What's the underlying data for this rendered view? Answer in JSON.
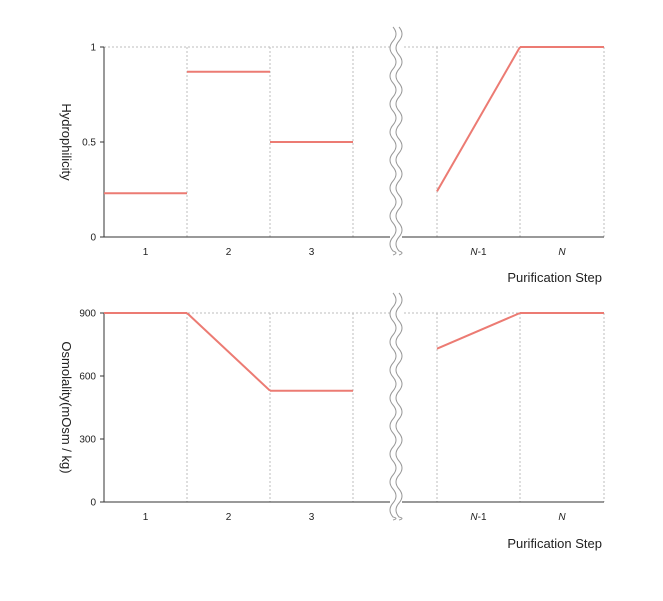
{
  "colors": {
    "series": "#ec7b73",
    "grid": "#bdbdbd",
    "axis": "#333333"
  },
  "chart_data": [
    {
      "type": "line",
      "title": "",
      "xlabel": "Purification Step",
      "ylabel": "Hydrophilicity",
      "ylim": [
        0,
        1
      ],
      "yticks": [
        "0",
        "0.5",
        "1"
      ],
      "categories": [
        {
          "prefix": "",
          "italic": "",
          "suffix": "1"
        },
        {
          "prefix": "",
          "italic": "",
          "suffix": "2"
        },
        {
          "prefix": "",
          "italic": "",
          "suffix": "3"
        },
        {
          "prefix": "",
          "italic": "N",
          "suffix": "-1"
        },
        {
          "prefix": "",
          "italic": "N",
          "suffix": ""
        }
      ],
      "axis_break": "between 3 and N-1",
      "grid": true,
      "series": [
        {
          "values_start": [
            0.23,
            0.87,
            0.5,
            0.24,
            1.0
          ],
          "values_end": [
            0.23,
            0.87,
            0.5,
            1.0,
            1.0
          ]
        }
      ]
    },
    {
      "type": "line",
      "title": "",
      "xlabel": "Purification Step",
      "ylabel": "Osmolality(mOsm / kg)",
      "ylim": [
        0,
        900
      ],
      "yticks": [
        "0",
        "300",
        "600",
        "900"
      ],
      "categories": [
        {
          "prefix": "",
          "italic": "",
          "suffix": "1"
        },
        {
          "prefix": "",
          "italic": "",
          "suffix": "2"
        },
        {
          "prefix": "",
          "italic": "",
          "suffix": "3"
        },
        {
          "prefix": "",
          "italic": "N",
          "suffix": "-1"
        },
        {
          "prefix": "",
          "italic": "N",
          "suffix": ""
        }
      ],
      "axis_break": "between 3 and N-1",
      "grid": true,
      "series": [
        {
          "values_start": [
            900,
            900,
            530,
            730,
            900
          ],
          "values_end": [
            900,
            530,
            530,
            900,
            900
          ]
        }
      ]
    }
  ]
}
